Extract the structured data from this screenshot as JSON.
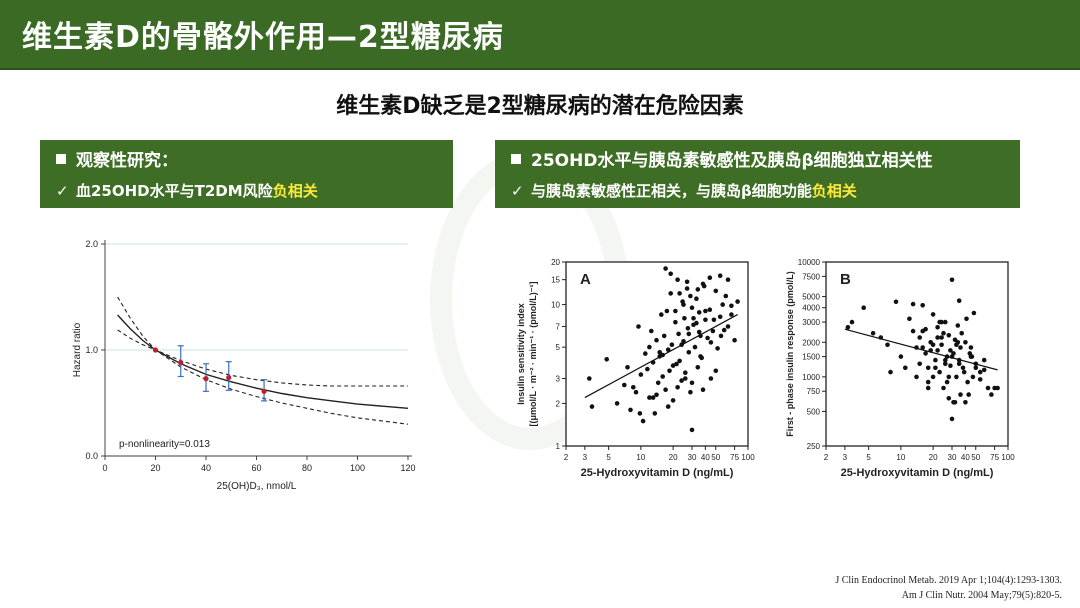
{
  "header": {
    "title": "维生素D的骨骼外作用—2型糖尿病"
  },
  "subtitle": "维生素D缺乏是2型糖尿病的潜在危险因素",
  "left_panel": {
    "heading": "观察性研究：",
    "check_mark": "✓",
    "point_prefix": "血25OHD水平与T2DM风险",
    "point_highlight": "负相关"
  },
  "right_panel": {
    "heading": "25OHD水平与胰岛素敏感性及胰岛β细胞独立相关性",
    "check_mark": "✓",
    "point_prefix": "与胰岛素敏感性正相关，与胰岛β细胞功能",
    "point_highlight": "负相关"
  },
  "colors": {
    "header_green": "#3a6a24",
    "panel_green": "#3e6d26",
    "highlight_yellow": "#ffea3a",
    "point_red": "#c0202a",
    "errorbar_blue": "#3a6fc0"
  },
  "chart_data": [
    {
      "type": "line",
      "xlabel": "25(OH)D₃, nmol/L",
      "ylabel": "Hazard ratio",
      "xlim": [
        0,
        120
      ],
      "ylim": [
        0,
        2.0
      ],
      "xticks": [
        "0",
        "20",
        "40",
        "60",
        "80",
        "100",
        "120"
      ],
      "yticks": [
        "0.0",
        "1.0",
        "2.0"
      ],
      "grid": "horizontal",
      "annotation": "p-nonlinearity=0.013",
      "series": [
        {
          "x": [
            5,
            10,
            15,
            20,
            30,
            40,
            50,
            60,
            70,
            80,
            90,
            100,
            110,
            120
          ],
          "y": [
            1.33,
            1.2,
            1.09,
            1.0,
            0.87,
            0.77,
            0.7,
            0.64,
            0.59,
            0.55,
            0.52,
            0.49,
            0.47,
            0.45
          ]
        },
        {
          "x": [
            5,
            10,
            15,
            20,
            30,
            40,
            50,
            60,
            70,
            80,
            90,
            100,
            110,
            120
          ],
          "y": [
            1.5,
            1.3,
            1.13,
            1.0,
            0.9,
            0.82,
            0.76,
            0.72,
            0.69,
            0.67,
            0.66,
            0.66,
            0.66,
            0.66
          ]
        },
        {
          "x": [
            5,
            10,
            15,
            20,
            30,
            40,
            50,
            60,
            70,
            80,
            90,
            100,
            110,
            120
          ],
          "y": [
            1.19,
            1.11,
            1.05,
            1.0,
            0.84,
            0.72,
            0.63,
            0.56,
            0.5,
            0.45,
            0.4,
            0.36,
            0.33,
            0.3
          ]
        }
      ],
      "points": [
        {
          "x": 20,
          "y": 1.0,
          "low": 1.0,
          "high": 1.0
        },
        {
          "x": 30,
          "y": 0.88,
          "low": 0.75,
          "high": 1.04
        },
        {
          "x": 40,
          "y": 0.73,
          "low": 0.61,
          "high": 0.87
        },
        {
          "x": 49,
          "y": 0.74,
          "low": 0.62,
          "high": 0.89
        },
        {
          "x": 63,
          "y": 0.61,
          "low": 0.52,
          "high": 0.72
        }
      ]
    },
    {
      "type": "scatter",
      "panel_label": "A",
      "xlabel": "25-Hydroxyvitamin D (ng/mL)",
      "ylabel": "Insulin sensitivity index\n[(μmol/L · m⁻² · min⁻¹ · (pmol/L)⁻¹]",
      "xscale": "log",
      "yscale": "log",
      "xlim": [
        2,
        100
      ],
      "ylim": [
        1,
        20
      ],
      "xticks": [
        2,
        3,
        5,
        10,
        20,
        30,
        40,
        50,
        75,
        100
      ],
      "yticks": [
        1,
        2,
        3,
        5,
        7,
        10,
        15,
        20
      ],
      "x": [
        3.3,
        3.5,
        4.8,
        7,
        7.5,
        8,
        9,
        9.5,
        10,
        10.5,
        11,
        12,
        12.5,
        13,
        13.5,
        14,
        14.5,
        15,
        15.5,
        16,
        16.5,
        17,
        17.5,
        18,
        18.5,
        19,
        19.5,
        20,
        21,
        21.5,
        22,
        22.5,
        23,
        24,
        24.5,
        25,
        25.5,
        26,
        27,
        27.5,
        28,
        29,
        30,
        31,
        32,
        33,
        34,
        35,
        36,
        37,
        38,
        40,
        42,
        44,
        45,
        47,
        50,
        52,
        55,
        58,
        60,
        65,
        70,
        75,
        80,
        6,
        8.5,
        11.5,
        14,
        16,
        18,
        20,
        22,
        24,
        26,
        28,
        30,
        33,
        36,
        40,
        45,
        50,
        55,
        62,
        70,
        19,
        23,
        27,
        31,
        35,
        17,
        21,
        25,
        29,
        34,
        39,
        44,
        48,
        13,
        15,
        12,
        9.8,
        56,
        65,
        30,
        38
      ],
      "y": [
        3.0,
        1.9,
        4.1,
        2.7,
        3.6,
        1.8,
        2.4,
        7.0,
        3.2,
        1.5,
        4.5,
        2.2,
        6.5,
        3.9,
        1.7,
        5.6,
        2.8,
        4.3,
        8.5,
        3.1,
        6.0,
        2.5,
        9.0,
        4.8,
        3.4,
        12.0,
        5.2,
        2.1,
        7.5,
        3.8,
        15.0,
        6.2,
        4.0,
        2.9,
        10.5,
        5.5,
        8.0,
        3.3,
        13.0,
        6.8,
        4.6,
        2.4,
        9.5,
        7.2,
        5.0,
        11.0,
        3.6,
        8.8,
        6.0,
        4.2,
        14.0,
        7.8,
        5.8,
        9.2,
        3.0,
        6.5,
        12.5,
        4.9,
        8.2,
        10.0,
        6.6,
        7.0,
        9.8,
        5.6,
        10.5,
        2.0,
        2.6,
        3.5,
        2.3,
        4.4,
        1.9,
        3.7,
        2.6,
        5.2,
        3.0,
        6.2,
        2.8,
        7.4,
        4.3,
        9.0,
        5.4,
        3.4,
        16.0,
        11.5,
        8.5,
        16.5,
        12.0,
        14.5,
        8.0,
        6.4,
        18.0,
        9.0,
        10.0,
        11.5,
        12.8,
        13.5,
        15.5,
        7.8,
        2.2,
        4.6,
        5.0,
        1.7,
        6.0,
        15.0,
        1.3,
        2.5
      ],
      "trend": {
        "x": [
          3,
          80
        ],
        "y": [
          2.2,
          8.5
        ]
      }
    },
    {
      "type": "scatter",
      "panel_label": "B",
      "xlabel": "25-Hydroxyvitamin D (ng/mL)",
      "ylabel": "First - phase insulin response (pmol/L)",
      "xscale": "log",
      "yscale": "log",
      "xlim": [
        2,
        100
      ],
      "ylim": [
        250,
        10000
      ],
      "xticks": [
        2,
        3,
        5,
        10,
        20,
        30,
        40,
        50,
        75,
        100
      ],
      "yticks": [
        250,
        500,
        750,
        1000,
        1500,
        2000,
        3000,
        4000,
        5000,
        7500,
        10000
      ],
      "x": [
        3.2,
        3.5,
        4.5,
        5.5,
        6.5,
        7.5,
        8,
        9,
        10,
        11,
        12,
        13,
        14,
        15,
        16,
        17,
        18,
        19,
        20,
        21,
        22,
        23,
        24,
        25,
        26,
        27,
        28,
        29,
        30,
        31,
        32,
        33,
        34,
        35,
        36,
        38,
        40,
        42,
        44,
        46,
        48,
        50,
        55,
        60,
        65,
        70,
        75,
        80,
        15,
        17,
        19,
        21,
        23,
        25,
        27,
        29,
        31,
        33,
        35,
        37,
        39,
        41,
        43,
        45,
        47,
        13,
        16,
        18,
        20,
        22,
        24,
        26,
        28,
        30,
        32,
        34,
        36,
        14,
        28,
        30,
        26,
        24,
        22,
        20,
        18,
        16,
        35,
        40,
        45,
        50,
        55,
        60
      ],
      "y": [
        2700,
        3000,
        4000,
        2400,
        2200,
        1900,
        1100,
        4500,
        1500,
        1200,
        3200,
        2500,
        1800,
        1300,
        4200,
        1600,
        900,
        2000,
        3500,
        1400,
        2700,
        1100,
        1900,
        800,
        3000,
        1500,
        2300,
        1250,
        7000,
        1600,
        2100,
        1000,
        2800,
        1400,
        1800,
        1200,
        2000,
        900,
        1600,
        1500,
        3600,
        1300,
        1100,
        1400,
        800,
        700,
        800,
        800,
        2200,
        2600,
        1700,
        1200,
        3000,
        2400,
        900,
        1700,
        600,
        1900,
        1300,
        2400,
        1100,
        3200,
        700,
        1500,
        1000,
        4300,
        1800,
        1200,
        1000,
        1700,
        2200,
        1300,
        1000,
        1500,
        600,
        2000,
        700,
        1000,
        650,
        430,
        1400,
        3000,
        2200,
        1900,
        800,
        2500,
        4600,
        600,
        1800,
        1200,
        950,
        1150
      ],
      "trend": {
        "x": [
          3,
          80
        ],
        "y": [
          2600,
          1150
        ]
      }
    }
  ],
  "references": [
    "J Clin Endocrinol Metab. 2019 Apr 1;104(4):1293-1303.",
    "Am J Clin Nutr. 2004 May;79(5):820-5."
  ]
}
